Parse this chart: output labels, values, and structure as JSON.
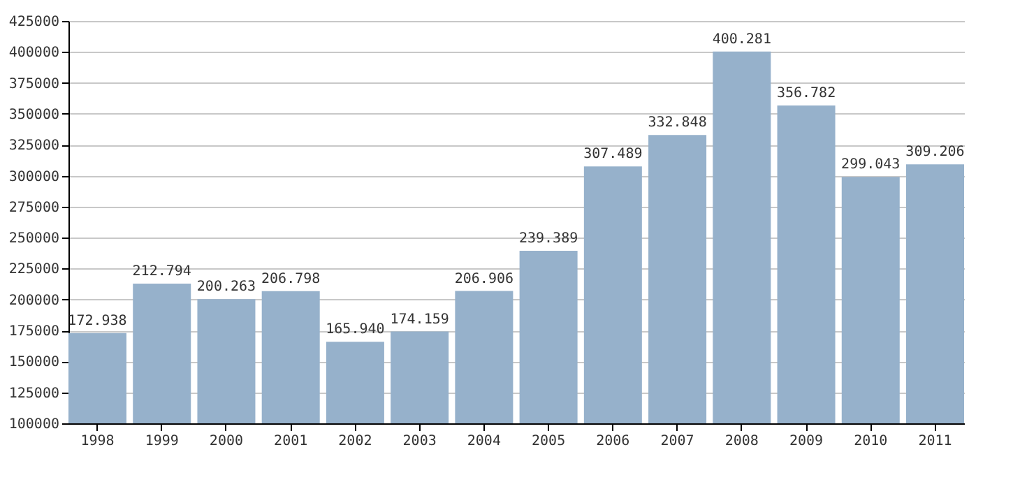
{
  "chart_data": {
    "type": "bar",
    "categories": [
      "1998",
      "1999",
      "2000",
      "2001",
      "2002",
      "2003",
      "2004",
      "2005",
      "2006",
      "2007",
      "2008",
      "2009",
      "2010",
      "2011"
    ],
    "values": [
      172938,
      212794,
      200263,
      206798,
      165940,
      174159,
      206906,
      239389,
      307489,
      332848,
      400281,
      356782,
      299043,
      309206
    ],
    "value_labels": [
      "172.938",
      "212.794",
      "200.263",
      "206.798",
      "165.940",
      "174.159",
      "206.906",
      "239.389",
      "307.489",
      "332.848",
      "400.281",
      "356.782",
      "299.043",
      "309.206"
    ],
    "color": "#96b1cb",
    "ylim": [
      100000,
      425000
    ],
    "yticks": [
      100000,
      125000,
      150000,
      175000,
      200000,
      225000,
      250000,
      275000,
      300000,
      325000,
      350000,
      375000,
      400000,
      425000
    ],
    "grid": "y"
  }
}
